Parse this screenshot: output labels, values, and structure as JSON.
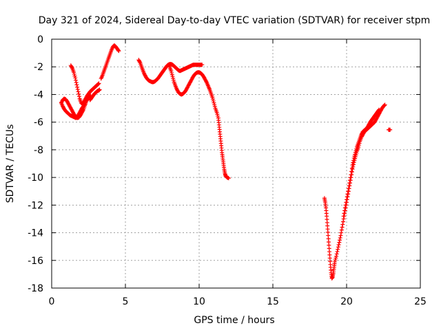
{
  "chart_data": {
    "type": "scatter",
    "title": "Day 321 of 2024, Sidereal Day-to-day VTEC variation (SDTVAR) for receiver stpm",
    "xlabel": "GPS time / hours",
    "ylabel": "SDTVAR / TECUs",
    "xlim": [
      0,
      25
    ],
    "ylim": [
      -18,
      0
    ],
    "xticks": [
      0,
      5,
      10,
      15,
      20,
      25
    ],
    "xtick_labels": [
      "0",
      "5",
      "10",
      "15",
      "20",
      "25"
    ],
    "yticks": [
      0,
      -2,
      -4,
      -6,
      -8,
      -10,
      -12,
      -14,
      -16,
      -18
    ],
    "ytick_labels": [
      "0",
      "-2",
      "-4",
      "-6",
      "-8",
      "-10",
      "-12",
      "-14",
      "-16",
      "-18"
    ],
    "grid": true,
    "marker": "+",
    "color": "#ff0000",
    "series": [
      {
        "name": "stpm",
        "segments": [
          [
            [
              0.65,
              -4.6
            ],
            [
              0.75,
              -4.4
            ],
            [
              0.85,
              -4.3
            ],
            [
              0.95,
              -4.35
            ],
            [
              1.05,
              -4.5
            ],
            [
              1.15,
              -4.7
            ],
            [
              1.25,
              -4.9
            ],
            [
              1.35,
              -5.1
            ],
            [
              1.45,
              -5.3
            ],
            [
              1.55,
              -5.5
            ],
            [
              1.65,
              -5.6
            ],
            [
              1.75,
              -5.7
            ],
            [
              1.85,
              -5.65
            ],
            [
              1.95,
              -5.5
            ],
            [
              2.05,
              -5.3
            ],
            [
              2.15,
              -5.1
            ],
            [
              2.25,
              -4.8
            ],
            [
              2.35,
              -4.5
            ],
            [
              2.45,
              -4.3
            ],
            [
              2.55,
              -4.15
            ],
            [
              2.65,
              -4.1
            ]
          ],
          [
            [
              0.65,
              -4.6
            ],
            [
              0.75,
              -4.85
            ],
            [
              0.85,
              -5.05
            ],
            [
              0.95,
              -5.2
            ],
            [
              1.05,
              -5.3
            ],
            [
              1.15,
              -5.4
            ],
            [
              1.25,
              -5.5
            ],
            [
              1.35,
              -5.55
            ],
            [
              1.45,
              -5.6
            ],
            [
              1.55,
              -5.65
            ],
            [
              1.65,
              -5.7
            ],
            [
              1.75,
              -5.6
            ],
            [
              1.85,
              -5.4
            ],
            [
              1.95,
              -5.2
            ],
            [
              2.05,
              -5.0
            ],
            [
              2.15,
              -4.85
            ],
            [
              2.25,
              -4.7
            ]
          ],
          [
            [
              1.3,
              -1.9
            ],
            [
              1.4,
              -2.1
            ],
            [
              1.5,
              -2.4
            ],
            [
              1.6,
              -2.8
            ],
            [
              1.7,
              -3.3
            ],
            [
              1.8,
              -3.8
            ],
            [
              1.9,
              -4.3
            ],
            [
              2.0,
              -4.6
            ],
            [
              2.1,
              -4.7
            ],
            [
              2.2,
              -4.5
            ],
            [
              2.3,
              -4.3
            ],
            [
              2.4,
              -4.1
            ],
            [
              2.5,
              -3.95
            ],
            [
              2.6,
              -3.8
            ],
            [
              2.7,
              -3.7
            ],
            [
              2.8,
              -3.6
            ],
            [
              2.9,
              -3.5
            ],
            [
              3.0,
              -3.4
            ],
            [
              3.1,
              -3.3
            ],
            [
              3.2,
              -3.2
            ]
          ],
          [
            [
              2.6,
              -4.4
            ],
            [
              2.7,
              -4.25
            ],
            [
              2.8,
              -4.1
            ],
            [
              2.9,
              -3.95
            ],
            [
              3.0,
              -3.85
            ],
            [
              3.1,
              -3.75
            ],
            [
              3.2,
              -3.7
            ],
            [
              3.25,
              -3.65
            ]
          ],
          [
            [
              3.35,
              -2.85
            ],
            [
              3.45,
              -2.6
            ],
            [
              3.55,
              -2.3
            ],
            [
              3.65,
              -2.0
            ],
            [
              3.75,
              -1.7
            ],
            [
              3.85,
              -1.4
            ],
            [
              3.95,
              -1.1
            ],
            [
              4.05,
              -0.8
            ],
            [
              4.15,
              -0.55
            ],
            [
              4.25,
              -0.45
            ],
            [
              4.35,
              -0.55
            ],
            [
              4.45,
              -0.7
            ],
            [
              4.55,
              -0.85
            ]
          ],
          [
            [
              5.9,
              -1.5
            ],
            [
              6.0,
              -1.7
            ],
            [
              6.1,
              -2.0
            ],
            [
              6.2,
              -2.3
            ],
            [
              6.3,
              -2.55
            ],
            [
              6.4,
              -2.75
            ],
            [
              6.5,
              -2.9
            ],
            [
              6.6,
              -3.0
            ],
            [
              6.7,
              -3.05
            ],
            [
              6.8,
              -3.1
            ],
            [
              6.9,
              -3.1
            ],
            [
              7.0,
              -3.05
            ],
            [
              7.1,
              -2.95
            ],
            [
              7.2,
              -2.85
            ],
            [
              7.3,
              -2.7
            ],
            [
              7.4,
              -2.55
            ],
            [
              7.5,
              -2.4
            ],
            [
              7.6,
              -2.25
            ],
            [
              7.7,
              -2.1
            ],
            [
              7.8,
              -1.95
            ],
            [
              7.9,
              -1.85
            ],
            [
              8.0,
              -1.8
            ],
            [
              8.1,
              -1.8
            ],
            [
              8.2,
              -1.85
            ],
            [
              8.3,
              -1.95
            ],
            [
              8.4,
              -2.05
            ],
            [
              8.5,
              -2.15
            ],
            [
              8.6,
              -2.25
            ],
            [
              8.7,
              -2.3
            ],
            [
              8.8,
              -2.25
            ],
            [
              8.9,
              -2.2
            ],
            [
              9.0,
              -2.15
            ],
            [
              9.1,
              -2.1
            ],
            [
              9.2,
              -2.05
            ],
            [
              9.3,
              -2.0
            ],
            [
              9.4,
              -1.95
            ],
            [
              9.5,
              -1.9
            ],
            [
              9.6,
              -1.85
            ],
            [
              9.7,
              -1.85
            ],
            [
              9.8,
              -1.85
            ],
            [
              9.9,
              -1.85
            ],
            [
              10.0,
              -1.85
            ],
            [
              10.1,
              -1.85
            ],
            [
              10.2,
              -1.85
            ]
          ],
          [
            [
              8.0,
              -2.0
            ],
            [
              8.1,
              -2.3
            ],
            [
              8.2,
              -2.7
            ],
            [
              8.3,
              -3.1
            ],
            [
              8.4,
              -3.4
            ],
            [
              8.5,
              -3.65
            ],
            [
              8.6,
              -3.85
            ],
            [
              8.7,
              -3.95
            ],
            [
              8.8,
              -4.0
            ],
            [
              8.9,
              -3.95
            ],
            [
              9.0,
              -3.85
            ],
            [
              9.1,
              -3.7
            ],
            [
              9.2,
              -3.5
            ],
            [
              9.3,
              -3.3
            ],
            [
              9.4,
              -3.1
            ],
            [
              9.5,
              -2.9
            ],
            [
              9.6,
              -2.7
            ],
            [
              9.7,
              -2.55
            ],
            [
              9.8,
              -2.45
            ],
            [
              9.9,
              -2.4
            ],
            [
              10.0,
              -2.4
            ],
            [
              10.1,
              -2.45
            ],
            [
              10.2,
              -2.55
            ],
            [
              10.3,
              -2.7
            ],
            [
              10.4,
              -2.9
            ],
            [
              10.5,
              -3.1
            ],
            [
              10.6,
              -3.35
            ],
            [
              10.7,
              -3.6
            ],
            [
              10.8,
              -3.9
            ],
            [
              10.9,
              -4.2
            ],
            [
              11.0,
              -4.6
            ],
            [
              11.1,
              -5.0
            ],
            [
              11.2,
              -5.3
            ],
            [
              11.3,
              -5.7
            ],
            [
              11.35,
              -6.2
            ],
            [
              11.4,
              -6.7
            ],
            [
              11.45,
              -7.2
            ],
            [
              11.5,
              -7.7
            ],
            [
              11.55,
              -8.2
            ],
            [
              11.6,
              -8.6
            ],
            [
              11.65,
              -9.0
            ],
            [
              11.7,
              -9.4
            ],
            [
              11.75,
              -9.7
            ],
            [
              11.8,
              -9.9
            ],
            [
              11.9,
              -10.0
            ],
            [
              12.0,
              -10.05
            ]
          ],
          [
            [
              18.5,
              -11.5
            ],
            [
              18.55,
              -11.8
            ],
            [
              18.6,
              -12.2
            ],
            [
              18.65,
              -12.8
            ],
            [
              18.7,
              -13.5
            ],
            [
              18.75,
              -14.2
            ],
            [
              18.8,
              -14.9
            ],
            [
              18.85,
              -15.6
            ],
            [
              18.9,
              -16.3
            ],
            [
              18.95,
              -16.9
            ],
            [
              19.0,
              -17.3
            ],
            [
              19.05,
              -17.2
            ],
            [
              19.1,
              -16.9
            ],
            [
              19.15,
              -16.5
            ],
            [
              19.2,
              -16.1
            ],
            [
              19.3,
              -15.7
            ],
            [
              19.4,
              -15.2
            ],
            [
              19.5,
              -14.7
            ],
            [
              19.6,
              -14.2
            ],
            [
              19.7,
              -13.6
            ],
            [
              19.8,
              -13.0
            ],
            [
              19.9,
              -12.4
            ],
            [
              20.0,
              -11.8
            ],
            [
              20.1,
              -11.2
            ],
            [
              20.2,
              -10.6
            ],
            [
              20.3,
              -10.0
            ],
            [
              20.4,
              -9.4
            ],
            [
              20.5,
              -8.9
            ],
            [
              20.6,
              -8.5
            ],
            [
              20.7,
              -8.1
            ],
            [
              20.8,
              -7.8
            ],
            [
              20.9,
              -7.4
            ],
            [
              21.0,
              -7.1
            ],
            [
              21.1,
              -6.9
            ],
            [
              21.2,
              -6.7
            ],
            [
              21.3,
              -6.6
            ],
            [
              21.4,
              -6.5
            ],
            [
              21.5,
              -6.4
            ],
            [
              21.6,
              -6.3
            ],
            [
              21.7,
              -6.2
            ],
            [
              21.8,
              -6.1
            ],
            [
              21.9,
              -6.0
            ],
            [
              22.0,
              -5.8
            ],
            [
              22.1,
              -5.6
            ],
            [
              22.2,
              -5.4
            ],
            [
              22.3,
              -5.2
            ],
            [
              22.4,
              -5.0
            ],
            [
              22.5,
              -4.85
            ],
            [
              22.6,
              -4.75
            ]
          ],
          [
            [
              19.8,
              -12.8
            ],
            [
              19.9,
              -12.2
            ],
            [
              20.0,
              -11.6
            ],
            [
              20.1,
              -11.0
            ],
            [
              20.2,
              -10.4
            ],
            [
              20.3,
              -9.8
            ],
            [
              20.4,
              -9.1
            ],
            [
              20.5,
              -8.6
            ],
            [
              20.6,
              -8.2
            ],
            [
              20.7,
              -7.8
            ],
            [
              20.8,
              -7.5
            ],
            [
              20.9,
              -7.2
            ],
            [
              21.0,
              -6.9
            ],
            [
              21.1,
              -6.7
            ],
            [
              21.2,
              -6.6
            ],
            [
              21.3,
              -6.5
            ],
            [
              21.4,
              -6.4
            ],
            [
              21.5,
              -6.2
            ],
            [
              21.6,
              -6.0
            ],
            [
              21.7,
              -5.85
            ],
            [
              21.8,
              -5.7
            ],
            [
              21.9,
              -5.55
            ],
            [
              22.0,
              -5.4
            ],
            [
              22.1,
              -5.25
            ],
            [
              22.2,
              -5.1
            ]
          ],
          [
            [
              22.85,
              -6.55
            ],
            [
              22.95,
              -6.55
            ]
          ]
        ]
      }
    ]
  }
}
